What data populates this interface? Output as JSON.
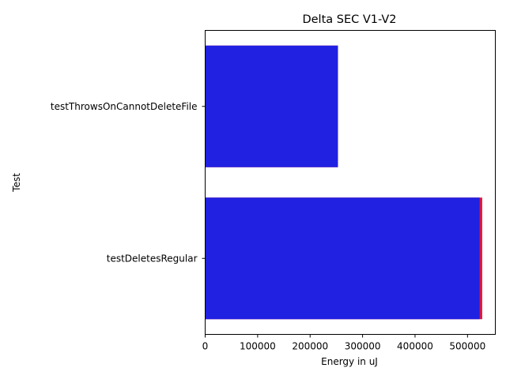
{
  "chart_data": {
    "type": "bar",
    "orientation": "horizontal",
    "title": "Delta SEC V1-V2",
    "xlabel": "Energy in uJ",
    "ylabel": "Test",
    "categories": [
      "testThrowsOnCannotDeleteFile",
      "testDeletesRegular"
    ],
    "series": [
      {
        "values": [
          253000,
          528000
        ],
        "color": "#dc143c"
      },
      {
        "values": [
          253000,
          523000
        ],
        "color": "#2121e2"
      }
    ],
    "xlim": [
      0,
      553000
    ],
    "xticks": [
      0,
      100000,
      200000,
      300000,
      400000,
      500000
    ],
    "xtick_labels": [
      "0",
      "100000",
      "200000",
      "300000",
      "400000",
      "500000"
    ],
    "grid": false,
    "legend": "none"
  }
}
